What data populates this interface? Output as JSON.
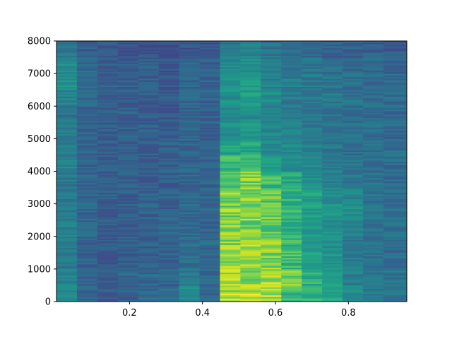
{
  "chart_data": {
    "type": "heatmap",
    "subtype": "spectrogram",
    "colormap": "viridis",
    "title": "",
    "xlabel": "",
    "ylabel": "",
    "xlim": [
      0.0,
      0.96
    ],
    "ylim": [
      0,
      8000
    ],
    "xticks": [
      0.2,
      0.4,
      0.6,
      0.8
    ],
    "xtick_labels": [
      "0.2",
      "0.4",
      "0.6",
      "0.8"
    ],
    "yticks": [
      0,
      1000,
      2000,
      3000,
      4000,
      5000,
      6000,
      7000,
      8000
    ],
    "ytick_labels": [
      "0",
      "1000",
      "2000",
      "3000",
      "4000",
      "5000",
      "6000",
      "7000",
      "8000"
    ],
    "grid": false,
    "frequency_bands_hz": [
      0,
      500,
      1000,
      1500,
      2000,
      2500,
      3000,
      3500,
      4000,
      4500,
      5000,
      5500,
      6000,
      6500,
      7000,
      7500,
      8000
    ],
    "time_frames_s": [
      0.0,
      0.056,
      0.112,
      0.168,
      0.224,
      0.28,
      0.336,
      0.392,
      0.448,
      0.504,
      0.56,
      0.616,
      0.672,
      0.728,
      0.784,
      0.84,
      0.896,
      0.96
    ],
    "intensity_levels": [
      [
        0.58,
        0.4,
        0.35,
        0.38,
        0.42,
        0.45,
        0.62,
        0.42,
        0.92,
        0.92,
        0.92,
        0.8,
        0.78,
        0.72,
        0.6,
        0.52,
        0.5
      ],
      [
        0.55,
        0.4,
        0.38,
        0.4,
        0.42,
        0.4,
        0.52,
        0.42,
        0.92,
        0.9,
        0.92,
        0.88,
        0.75,
        0.68,
        0.55,
        0.48,
        0.48
      ],
      [
        0.5,
        0.4,
        0.36,
        0.38,
        0.4,
        0.4,
        0.45,
        0.42,
        0.9,
        0.88,
        0.88,
        0.8,
        0.7,
        0.65,
        0.52,
        0.48,
        0.45
      ],
      [
        0.52,
        0.4,
        0.36,
        0.38,
        0.38,
        0.4,
        0.45,
        0.42,
        0.88,
        0.9,
        0.88,
        0.78,
        0.68,
        0.62,
        0.5,
        0.46,
        0.45
      ],
      [
        0.55,
        0.42,
        0.38,
        0.38,
        0.4,
        0.42,
        0.45,
        0.4,
        0.9,
        0.88,
        0.86,
        0.76,
        0.68,
        0.62,
        0.55,
        0.48,
        0.45
      ],
      [
        0.52,
        0.42,
        0.38,
        0.4,
        0.4,
        0.38,
        0.42,
        0.4,
        0.88,
        0.9,
        0.86,
        0.78,
        0.7,
        0.66,
        0.62,
        0.5,
        0.46
      ],
      [
        0.5,
        0.4,
        0.38,
        0.38,
        0.4,
        0.38,
        0.42,
        0.4,
        0.88,
        0.88,
        0.84,
        0.76,
        0.7,
        0.62,
        0.58,
        0.48,
        0.45
      ],
      [
        0.5,
        0.4,
        0.38,
        0.38,
        0.38,
        0.38,
        0.42,
        0.4,
        0.86,
        0.88,
        0.8,
        0.72,
        0.62,
        0.55,
        0.5,
        0.48,
        0.44
      ],
      [
        0.55,
        0.4,
        0.38,
        0.38,
        0.36,
        0.38,
        0.42,
        0.4,
        0.78,
        0.8,
        0.68,
        0.62,
        0.58,
        0.52,
        0.48,
        0.46,
        0.44
      ],
      [
        0.55,
        0.4,
        0.38,
        0.38,
        0.38,
        0.38,
        0.4,
        0.4,
        0.7,
        0.72,
        0.6,
        0.58,
        0.55,
        0.5,
        0.46,
        0.45,
        0.44
      ],
      [
        0.52,
        0.4,
        0.38,
        0.38,
        0.38,
        0.38,
        0.4,
        0.4,
        0.62,
        0.66,
        0.58,
        0.55,
        0.52,
        0.48,
        0.46,
        0.45,
        0.42
      ],
      [
        0.5,
        0.4,
        0.38,
        0.38,
        0.36,
        0.36,
        0.4,
        0.4,
        0.58,
        0.6,
        0.55,
        0.52,
        0.5,
        0.48,
        0.45,
        0.44,
        0.42
      ],
      [
        0.55,
        0.42,
        0.38,
        0.38,
        0.38,
        0.36,
        0.42,
        0.4,
        0.62,
        0.7,
        0.6,
        0.52,
        0.5,
        0.5,
        0.46,
        0.45,
        0.44
      ],
      [
        0.62,
        0.42,
        0.38,
        0.38,
        0.38,
        0.36,
        0.4,
        0.4,
        0.62,
        0.68,
        0.55,
        0.52,
        0.5,
        0.48,
        0.45,
        0.44,
        0.42
      ],
      [
        0.6,
        0.42,
        0.36,
        0.36,
        0.36,
        0.34,
        0.38,
        0.38,
        0.58,
        0.62,
        0.52,
        0.5,
        0.48,
        0.45,
        0.42,
        0.42,
        0.4
      ],
      [
        0.48,
        0.36,
        0.34,
        0.32,
        0.32,
        0.3,
        0.34,
        0.34,
        0.5,
        0.55,
        0.48,
        0.46,
        0.42,
        0.4,
        0.38,
        0.38,
        0.36
      ]
    ]
  }
}
